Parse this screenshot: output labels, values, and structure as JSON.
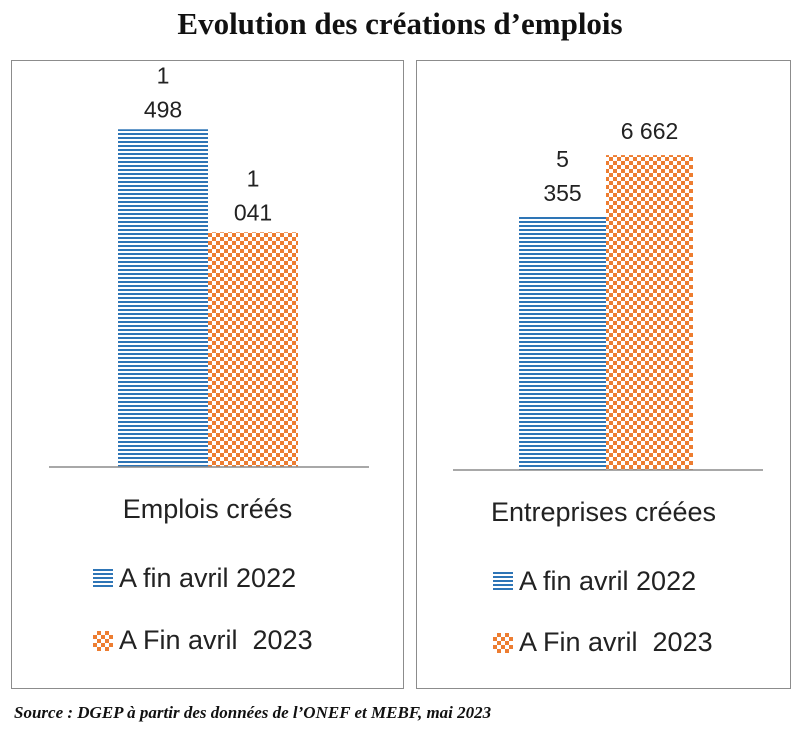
{
  "title": "Evolution des créations d’emplois",
  "source": "Source : DGEP à partir des données de l’ONEF et MEBF, mai 2023",
  "colors": {
    "series_2022": "#2e75b6",
    "series_2023": "#ed7d31",
    "axis": "#8c8c8c"
  },
  "legend": [
    {
      "label": "A fin avril 2022",
      "icon": "horizontal-lines-swatch"
    },
    {
      "label": "A Fin avril  2023",
      "icon": "checkerboard-swatch"
    }
  ],
  "chart_data": [
    {
      "type": "bar",
      "categories": [
        "Emplois créés"
      ],
      "series": [
        {
          "name": "A fin avril 2022",
          "values": [
            1498
          ],
          "labels": [
            "1",
            "498"
          ]
        },
        {
          "name": "A Fin avril  2023",
          "values": [
            1041
          ],
          "labels": [
            "1",
            "041"
          ]
        }
      ],
      "ylim": [
        0,
        1650
      ],
      "grid": false,
      "legend_position": "bottom"
    },
    {
      "type": "bar",
      "categories": [
        "Entreprises créées"
      ],
      "series": [
        {
          "name": "A fin avril 2022",
          "values": [
            5355
          ],
          "labels": [
            "5",
            "355"
          ]
        },
        {
          "name": "A Fin avril  2023",
          "values": [
            6662
          ],
          "labels": [
            "6 662"
          ]
        }
      ],
      "ylim": [
        0,
        7870
      ],
      "grid": false,
      "legend_position": "bottom"
    }
  ]
}
